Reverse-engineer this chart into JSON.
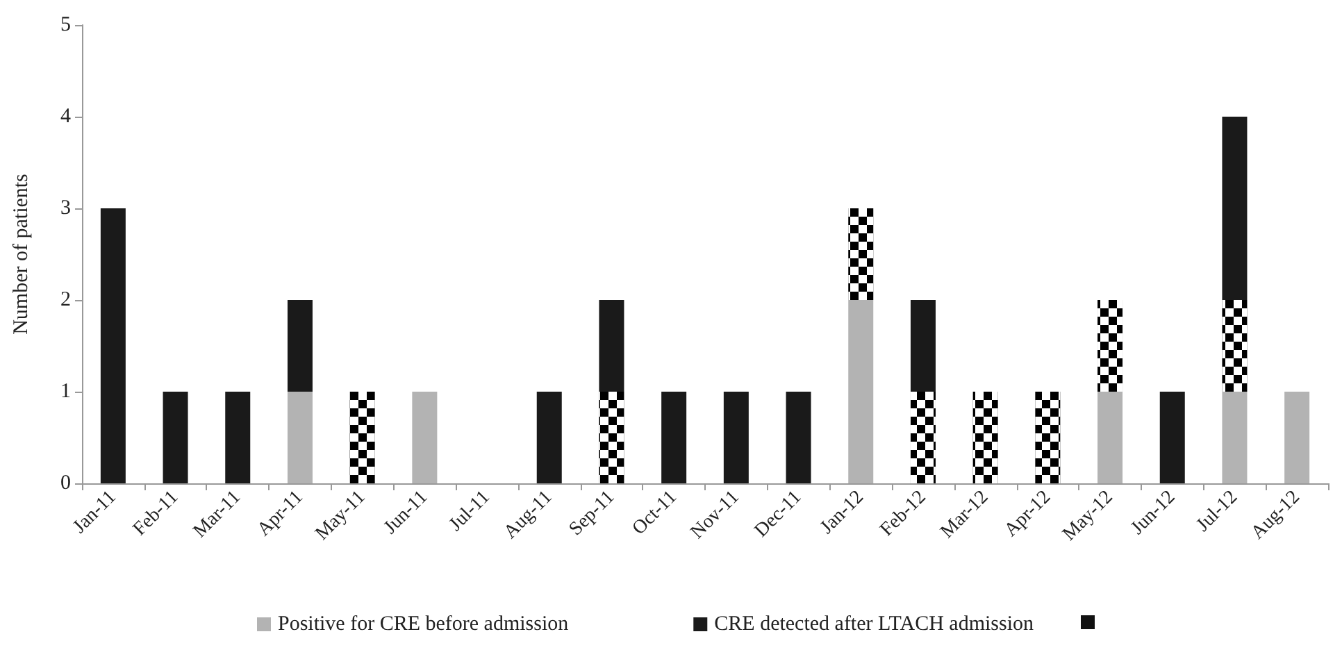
{
  "chart_data": {
    "type": "bar",
    "stacked": true,
    "ylabel": "Number of patients",
    "categories": [
      "Jan-11",
      "Feb-11",
      "Mar-11",
      "Apr-11",
      "May-11",
      "Jun-11",
      "Jul-11",
      "Aug-11",
      "Sep-11",
      "Oct-11",
      "Nov-11",
      "Dec-11",
      "Jan-12",
      "Feb-12",
      "Mar-12",
      "Apr-12",
      "May-12",
      "Jun-12",
      "Jul-12",
      "Aug-12"
    ],
    "series": [
      {
        "name": "Positive for CRE before admission",
        "color": "#b3b3b3",
        "values": [
          0,
          0,
          0,
          1,
          0,
          1,
          0,
          0,
          0,
          0,
          0,
          0,
          2,
          0,
          0,
          0,
          1,
          0,
          1,
          1
        ]
      },
      {
        "color": "#000000",
        "values": [
          0,
          0,
          0,
          0,
          1,
          0,
          0,
          0,
          1,
          0,
          0,
          0,
          1,
          1,
          1,
          1,
          1,
          0,
          1,
          0
        ]
      },
      {
        "name": "CRE detected after LTACH admission",
        "color": "#1a1a1a",
        "values": [
          3,
          1,
          1,
          1,
          0,
          0,
          0,
          1,
          1,
          1,
          1,
          1,
          0,
          1,
          0,
          0,
          0,
          1,
          2,
          0
        ]
      }
    ],
    "ylim": [
      0,
      5
    ],
    "yticks": [
      0,
      1,
      2,
      3,
      4,
      5
    ],
    "grid": false,
    "legend": "bottom"
  }
}
